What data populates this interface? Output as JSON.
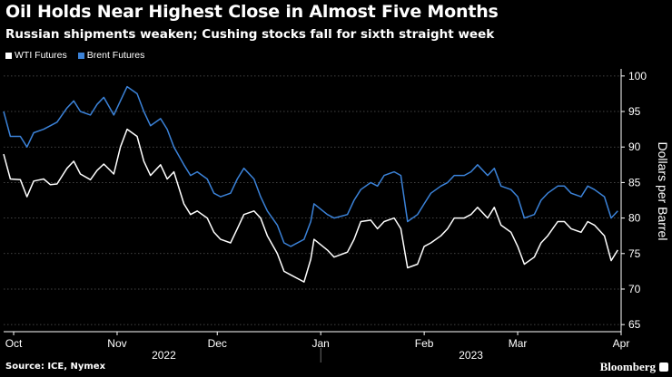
{
  "header": {
    "title": "Oil Holds Near Highest Close in Almost Five Months",
    "subtitle": "Russian shipments weaken; Cushing stocks fall for sixth straight week"
  },
  "footer": {
    "source": "Source: ICE, Nymex",
    "brand": "Bloomberg"
  },
  "colors": {
    "background": "#000000",
    "wti": "#ffffff",
    "brent": "#3b82d8",
    "axis": "#ffffff",
    "grid": "#5a5a5a"
  },
  "chart_data": {
    "type": "line",
    "legend_position": "top-left",
    "ylabel": "Dollars per Barrel",
    "ylim": [
      64,
      101
    ],
    "yticks": [
      65,
      70,
      75,
      80,
      85,
      90,
      95,
      100
    ],
    "grid": true,
    "xlim": [
      "2022-09-28",
      "2023-04-01"
    ],
    "xticks": [
      {
        "label": "Oct",
        "date": "2022-10-01"
      },
      {
        "label": "Nov",
        "date": "2022-11-01"
      },
      {
        "label": "Dec",
        "date": "2022-12-01"
      },
      {
        "label": "Jan",
        "date": "2023-01-01"
      },
      {
        "label": "Feb",
        "date": "2023-02-01"
      },
      {
        "label": "Mar",
        "date": "2023-03-01"
      },
      {
        "label": "Apr",
        "date": "2023-04-01"
      }
    ],
    "year_labels": [
      {
        "label": "2022",
        "date": "2022-11-15"
      },
      {
        "label": "2023",
        "date": "2023-02-15"
      }
    ],
    "year_divider": "2023-01-01",
    "series": [
      {
        "name": "WTI Futures",
        "color": "#ffffff",
        "points": [
          [
            "2022-09-28",
            89.0
          ],
          [
            "2022-09-30",
            85.5
          ],
          [
            "2022-10-03",
            85.4
          ],
          [
            "2022-10-05",
            83.0
          ],
          [
            "2022-10-07",
            85.2
          ],
          [
            "2022-10-10",
            85.5
          ],
          [
            "2022-10-12",
            84.7
          ],
          [
            "2022-10-14",
            84.8
          ],
          [
            "2022-10-17",
            87.0
          ],
          [
            "2022-10-19",
            88.0
          ],
          [
            "2022-10-21",
            86.2
          ],
          [
            "2022-10-24",
            85.4
          ],
          [
            "2022-10-26",
            86.7
          ],
          [
            "2022-10-28",
            87.6
          ],
          [
            "2022-10-31",
            86.2
          ],
          [
            "2022-11-02",
            90.0
          ],
          [
            "2022-11-04",
            92.5
          ],
          [
            "2022-11-07",
            91.5
          ],
          [
            "2022-11-09",
            88.0
          ],
          [
            "2022-11-11",
            86.0
          ],
          [
            "2022-11-14",
            87.5
          ],
          [
            "2022-11-16",
            85.5
          ],
          [
            "2022-11-18",
            86.5
          ],
          [
            "2022-11-21",
            82.0
          ],
          [
            "2022-11-23",
            80.5
          ],
          [
            "2022-11-25",
            81.0
          ],
          [
            "2022-11-28",
            80.0
          ],
          [
            "2022-11-30",
            78.0
          ],
          [
            "2022-12-02",
            77.0
          ],
          [
            "2022-12-05",
            76.5
          ],
          [
            "2022-12-07",
            78.5
          ],
          [
            "2022-12-09",
            80.5
          ],
          [
            "2022-12-12",
            81.0
          ],
          [
            "2022-12-14",
            80.0
          ],
          [
            "2022-12-16",
            77.5
          ],
          [
            "2022-12-19",
            75.0
          ],
          [
            "2022-12-21",
            72.5
          ],
          [
            "2022-12-23",
            72.0
          ],
          [
            "2022-12-27",
            71.0
          ],
          [
            "2022-12-29",
            74.2
          ],
          [
            "2022-12-30",
            77.0
          ],
          [
            "2023-01-03",
            75.5
          ],
          [
            "2023-01-05",
            74.5
          ],
          [
            "2023-01-09",
            75.2
          ],
          [
            "2023-01-11",
            77.0
          ],
          [
            "2023-01-13",
            79.5
          ],
          [
            "2023-01-16",
            79.7
          ],
          [
            "2023-01-18",
            78.5
          ],
          [
            "2023-01-20",
            79.5
          ],
          [
            "2023-01-23",
            80.0
          ],
          [
            "2023-01-25",
            78.5
          ],
          [
            "2023-01-27",
            73.0
          ],
          [
            "2023-01-30",
            73.5
          ],
          [
            "2023-02-01",
            76.0
          ],
          [
            "2023-02-03",
            76.5
          ],
          [
            "2023-02-06",
            77.5
          ],
          [
            "2023-02-08",
            78.5
          ],
          [
            "2023-02-10",
            80.0
          ],
          [
            "2023-02-13",
            80.0
          ],
          [
            "2023-02-15",
            80.5
          ],
          [
            "2023-02-17",
            81.5
          ],
          [
            "2023-02-20",
            80.0
          ],
          [
            "2023-02-22",
            81.5
          ],
          [
            "2023-02-24",
            79.0
          ],
          [
            "2023-02-27",
            78.0
          ],
          [
            "2023-03-01",
            76.0
          ],
          [
            "2023-03-03",
            73.5
          ],
          [
            "2023-03-06",
            74.5
          ],
          [
            "2023-03-08",
            76.5
          ],
          [
            "2023-03-10",
            77.5
          ],
          [
            "2023-03-13",
            79.5
          ],
          [
            "2023-03-15",
            79.5
          ],
          [
            "2023-03-17",
            78.5
          ],
          [
            "2023-03-20",
            78.0
          ],
          [
            "2023-03-22",
            79.5
          ],
          [
            "2023-03-24",
            79.0
          ],
          [
            "2023-03-27",
            77.5
          ],
          [
            "2023-03-29",
            74.0
          ],
          [
            "2023-03-31",
            75.5
          ]
        ]
      },
      {
        "name": "Brent Futures",
        "color": "#3b82d8",
        "points": [
          [
            "2022-09-28",
            95.0
          ],
          [
            "2022-09-30",
            91.5
          ],
          [
            "2022-10-03",
            91.5
          ],
          [
            "2022-10-05",
            90.0
          ],
          [
            "2022-10-07",
            92.0
          ],
          [
            "2022-10-10",
            92.5
          ],
          [
            "2022-10-12",
            93.0
          ],
          [
            "2022-10-14",
            93.5
          ],
          [
            "2022-10-17",
            95.5
          ],
          [
            "2022-10-19",
            96.5
          ],
          [
            "2022-10-21",
            95.0
          ],
          [
            "2022-10-24",
            94.5
          ],
          [
            "2022-10-26",
            96.0
          ],
          [
            "2022-10-28",
            97.0
          ],
          [
            "2022-10-31",
            94.5
          ],
          [
            "2022-11-02",
            96.5
          ],
          [
            "2022-11-04",
            98.5
          ],
          [
            "2022-11-07",
            97.5
          ],
          [
            "2022-11-09",
            95.0
          ],
          [
            "2022-11-11",
            93.0
          ],
          [
            "2022-11-14",
            94.0
          ],
          [
            "2022-11-16",
            92.5
          ],
          [
            "2022-11-18",
            90.0
          ],
          [
            "2022-11-21",
            87.5
          ],
          [
            "2022-11-23",
            86.0
          ],
          [
            "2022-11-25",
            86.5
          ],
          [
            "2022-11-28",
            85.5
          ],
          [
            "2022-11-30",
            83.5
          ],
          [
            "2022-12-02",
            83.0
          ],
          [
            "2022-12-05",
            83.5
          ],
          [
            "2022-12-07",
            85.5
          ],
          [
            "2022-12-09",
            87.0
          ],
          [
            "2022-12-12",
            85.5
          ],
          [
            "2022-12-14",
            83.0
          ],
          [
            "2022-12-16",
            81.0
          ],
          [
            "2022-12-19",
            79.0
          ],
          [
            "2022-12-21",
            76.5
          ],
          [
            "2022-12-23",
            76.0
          ],
          [
            "2022-12-27",
            77.0
          ],
          [
            "2022-12-29",
            79.5
          ],
          [
            "2022-12-30",
            82.0
          ],
          [
            "2023-01-03",
            80.5
          ],
          [
            "2023-01-05",
            80.0
          ],
          [
            "2023-01-09",
            80.5
          ],
          [
            "2023-01-11",
            82.5
          ],
          [
            "2023-01-13",
            84.0
          ],
          [
            "2023-01-16",
            85.0
          ],
          [
            "2023-01-18",
            84.5
          ],
          [
            "2023-01-20",
            86.0
          ],
          [
            "2023-01-23",
            86.5
          ],
          [
            "2023-01-25",
            86.0
          ],
          [
            "2023-01-27",
            79.5
          ],
          [
            "2023-01-30",
            80.5
          ],
          [
            "2023-02-01",
            82.0
          ],
          [
            "2023-02-03",
            83.5
          ],
          [
            "2023-02-06",
            84.5
          ],
          [
            "2023-02-08",
            85.0
          ],
          [
            "2023-02-10",
            86.0
          ],
          [
            "2023-02-13",
            86.0
          ],
          [
            "2023-02-15",
            86.5
          ],
          [
            "2023-02-17",
            87.5
          ],
          [
            "2023-02-20",
            86.0
          ],
          [
            "2023-02-22",
            87.0
          ],
          [
            "2023-02-24",
            84.5
          ],
          [
            "2023-02-27",
            84.0
          ],
          [
            "2023-03-01",
            83.0
          ],
          [
            "2023-03-03",
            80.0
          ],
          [
            "2023-03-06",
            80.5
          ],
          [
            "2023-03-08",
            82.5
          ],
          [
            "2023-03-10",
            83.5
          ],
          [
            "2023-03-13",
            84.5
          ],
          [
            "2023-03-15",
            84.5
          ],
          [
            "2023-03-17",
            83.5
          ],
          [
            "2023-03-20",
            83.0
          ],
          [
            "2023-03-22",
            84.5
          ],
          [
            "2023-03-24",
            84.0
          ],
          [
            "2023-03-27",
            83.0
          ],
          [
            "2023-03-29",
            80.0
          ],
          [
            "2023-03-31",
            81.0
          ]
        ]
      }
    ]
  }
}
